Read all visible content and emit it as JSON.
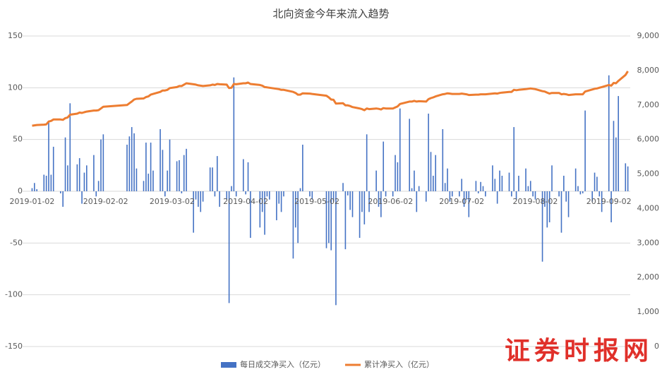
{
  "chart_data": {
    "type": "bar",
    "title": "北向资金今年来流入趋势",
    "watermark": "证券时报网",
    "x": [
      "2019-01-02",
      "2019-01-03",
      "2019-01-04",
      "2019-01-07",
      "2019-01-08",
      "2019-01-09",
      "2019-01-10",
      "2019-01-11",
      "2019-01-14",
      "2019-01-15",
      "2019-01-16",
      "2019-01-17",
      "2019-01-18",
      "2019-01-21",
      "2019-01-22",
      "2019-01-23",
      "2019-01-24",
      "2019-01-25",
      "2019-01-28",
      "2019-01-29",
      "2019-01-30",
      "2019-01-31",
      "2019-02-01",
      "2019-02-11",
      "2019-02-12",
      "2019-02-13",
      "2019-02-14",
      "2019-02-15",
      "2019-02-18",
      "2019-02-19",
      "2019-02-20",
      "2019-02-21",
      "2019-02-22",
      "2019-02-25",
      "2019-02-26",
      "2019-02-27",
      "2019-02-28",
      "2019-03-01",
      "2019-03-04",
      "2019-03-05",
      "2019-03-06",
      "2019-03-07",
      "2019-03-08",
      "2019-03-11",
      "2019-03-12",
      "2019-03-13",
      "2019-03-14",
      "2019-03-15",
      "2019-03-18",
      "2019-03-19",
      "2019-03-20",
      "2019-03-21",
      "2019-03-22",
      "2019-03-25",
      "2019-03-26",
      "2019-03-27",
      "2019-03-28",
      "2019-03-29",
      "2019-04-01",
      "2019-04-02",
      "2019-04-03",
      "2019-04-04",
      "2019-04-08",
      "2019-04-09",
      "2019-04-10",
      "2019-04-11",
      "2019-04-12",
      "2019-04-15",
      "2019-04-16",
      "2019-04-17",
      "2019-04-18",
      "2019-04-22",
      "2019-04-23",
      "2019-04-24",
      "2019-04-25",
      "2019-04-26",
      "2019-04-29",
      "2019-04-30",
      "2019-05-06",
      "2019-05-07",
      "2019-05-08",
      "2019-05-09",
      "2019-05-10",
      "2019-05-13",
      "2019-05-14",
      "2019-05-15",
      "2019-05-16",
      "2019-05-17",
      "2019-05-20",
      "2019-05-21",
      "2019-05-22",
      "2019-05-23",
      "2019-05-24",
      "2019-05-27",
      "2019-05-28",
      "2019-05-29",
      "2019-05-30",
      "2019-05-31",
      "2019-06-03",
      "2019-06-04",
      "2019-06-05",
      "2019-06-06",
      "2019-06-10",
      "2019-06-11",
      "2019-06-12",
      "2019-06-13",
      "2019-06-14",
      "2019-06-17",
      "2019-06-18",
      "2019-06-19",
      "2019-06-20",
      "2019-06-21",
      "2019-06-24",
      "2019-06-25",
      "2019-06-26",
      "2019-06-27",
      "2019-06-28",
      "2019-07-01",
      "2019-07-02",
      "2019-07-03",
      "2019-07-04",
      "2019-07-05",
      "2019-07-08",
      "2019-07-09",
      "2019-07-10",
      "2019-07-11",
      "2019-07-12",
      "2019-07-15",
      "2019-07-16",
      "2019-07-17",
      "2019-07-18",
      "2019-07-19",
      "2019-07-22",
      "2019-07-23",
      "2019-07-24",
      "2019-07-25",
      "2019-07-26",
      "2019-07-29",
      "2019-07-30",
      "2019-07-31",
      "2019-08-01",
      "2019-08-02",
      "2019-08-05",
      "2019-08-06",
      "2019-08-07",
      "2019-08-08",
      "2019-08-09",
      "2019-08-12",
      "2019-08-13",
      "2019-08-14",
      "2019-08-15",
      "2019-08-16",
      "2019-08-19",
      "2019-08-20",
      "2019-08-21",
      "2019-08-22",
      "2019-08-23",
      "2019-08-26",
      "2019-08-27",
      "2019-08-28",
      "2019-08-29",
      "2019-08-30",
      "2019-09-02",
      "2019-09-03",
      "2019-09-04",
      "2019-09-05",
      "2019-09-06",
      "2019-09-09",
      "2019-09-10"
    ],
    "series": [
      {
        "name": "每日成交净买入（亿元）",
        "type": "bar",
        "axis": "y",
        "color": "#4472c4",
        "values": [
          3,
          8,
          2,
          16,
          15,
          68,
          16,
          43,
          -2,
          -15,
          52,
          25,
          85,
          26,
          32,
          -12,
          18,
          25,
          35,
          -5,
          10,
          50,
          55,
          45,
          53,
          62,
          56,
          22,
          10,
          47,
          17,
          47,
          20,
          60,
          40,
          -5,
          20,
          50,
          29,
          30,
          -2,
          35,
          41,
          -40,
          -8,
          -15,
          -20,
          -10,
          23,
          23,
          -5,
          34,
          -15,
          -8,
          -108,
          5,
          110,
          -5,
          31,
          -3,
          28,
          -45,
          -35,
          -20,
          -42,
          -5,
          -8,
          -28,
          -12,
          -20,
          -5,
          -65,
          -35,
          -50,
          3,
          45,
          -5,
          -8,
          -55,
          -50,
          -57,
          -10,
          -110,
          8,
          -56,
          -4,
          -18,
          -25,
          -45,
          -20,
          -32,
          55,
          -20,
          20,
          -15,
          -25,
          48,
          -5,
          -5,
          35,
          28,
          80,
          70,
          3,
          20,
          -20,
          5,
          -10,
          75,
          38,
          15,
          35,
          60,
          8,
          22,
          -10,
          -5,
          -5,
          12,
          -15,
          -8,
          -25,
          10,
          -2,
          9,
          5,
          -5,
          25,
          12,
          -12,
          20,
          15,
          18,
          -5,
          62,
          -8,
          15,
          22,
          5,
          10,
          -5,
          -8,
          -68,
          -15,
          -35,
          -30,
          25,
          -5,
          -40,
          15,
          -10,
          -25,
          22,
          5,
          -3,
          -2,
          78,
          -10,
          18,
          14,
          -5,
          -20,
          112,
          -30,
          68,
          52,
          92,
          27,
          24
        ]
      },
      {
        "name": "累计净买入（亿元）",
        "type": "line",
        "axis": "y2",
        "color": "#ed7d31",
        "values": [
          6400,
          6410,
          6420,
          6430,
          6440,
          6520,
          6540,
          6580,
          6580,
          6570,
          6620,
          6640,
          6720,
          6750,
          6780,
          6770,
          6790,
          6810,
          6840,
          6840,
          6850,
          6900,
          6950,
          7000,
          7050,
          7100,
          7160,
          7180,
          7190,
          7230,
          7250,
          7300,
          7320,
          7380,
          7420,
          7420,
          7440,
          7490,
          7520,
          7550,
          7550,
          7590,
          7630,
          7600,
          7590,
          7570,
          7560,
          7550,
          7570,
          7590,
          7580,
          7610,
          7600,
          7590,
          7490,
          7500,
          7610,
          7600,
          7630,
          7630,
          7650,
          7610,
          7580,
          7560,
          7520,
          7510,
          7500,
          7470,
          7460,
          7440,
          7440,
          7380,
          7350,
          7300,
          7300,
          7340,
          7330,
          7320,
          7270,
          7220,
          7160,
          7150,
          7040,
          7050,
          6990,
          6990,
          6970,
          6940,
          6900,
          6880,
          6850,
          6900,
          6880,
          6900,
          6890,
          6870,
          6910,
          6900,
          6900,
          6930,
          6960,
          7030,
          7100,
          7100,
          7120,
          7100,
          7110,
          7100,
          7170,
          7200,
          7220,
          7250,
          7310,
          7320,
          7340,
          7330,
          7320,
          7320,
          7330,
          7320,
          7310,
          7290,
          7300,
          7300,
          7310,
          7310,
          7310,
          7330,
          7340,
          7330,
          7350,
          7360,
          7380,
          7380,
          7440,
          7430,
          7440,
          7460,
          7470,
          7480,
          7470,
          7460,
          7400,
          7390,
          7360,
          7330,
          7350,
          7350,
          7310,
          7320,
          7310,
          7290,
          7310,
          7310,
          7310,
          7310,
          7390,
          7450,
          7470,
          7480,
          7500,
          7520,
          7580,
          7560,
          7640,
          7630,
          7700,
          7870,
          7980
        ]
      }
    ],
    "xlim": [
      "2018-12-29",
      "2019-09-11"
    ],
    "xticks": [
      "2019-01-02",
      "2019-02-02",
      "2019-03-02",
      "2019-04-02",
      "2019-05-02",
      "2019-06-02",
      "2019-07-02",
      "2019-08-02",
      "2019-09-02"
    ],
    "ylim": [
      -150,
      150
    ],
    "yticks": [
      -150,
      -100,
      -50,
      0,
      50,
      100,
      150
    ],
    "y2lim": [
      0,
      9000
    ],
    "y2ticks": [
      0,
      {
        "value": 1000,
        "label": "1,000"
      },
      {
        "value": 2000,
        "label": "2,000"
      },
      {
        "value": 3000,
        "label": "3,000"
      },
      {
        "value": 4000,
        "label": "4,000"
      },
      {
        "value": 5000,
        "label": "5,000"
      },
      {
        "value": 6000,
        "label": "6,000"
      },
      {
        "value": 7000,
        "label": "7,000"
      },
      {
        "value": 8000,
        "label": "8,000"
      },
      {
        "value": 9000,
        "label": "9,000"
      }
    ],
    "grid": true,
    "legend": "bottom"
  }
}
